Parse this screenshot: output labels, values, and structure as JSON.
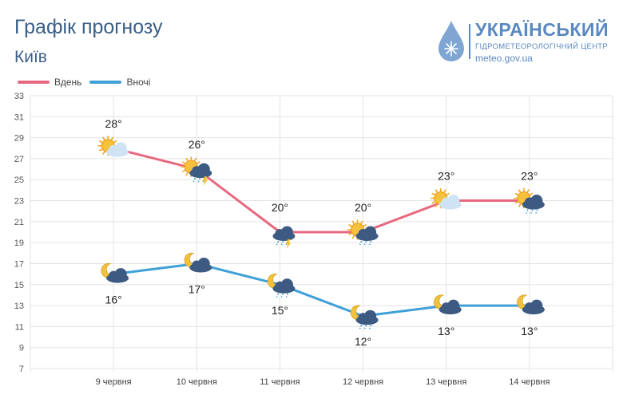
{
  "title": "Графік прогнозу",
  "city": "Київ",
  "logo": {
    "name": "УКРАЇНСЬКИЙ",
    "subtitle": "ГІДРОМЕТЕОРОЛОГІЧНИЙ ЦЕНТР",
    "url": "meteo.gov.ua"
  },
  "colors": {
    "day": "#e8687f",
    "night": "#3fa0d8",
    "grid": "#e3e3e3"
  },
  "chart_data": {
    "type": "line",
    "categories": [
      "9 червня",
      "10 червня",
      "11 червня",
      "12 червня",
      "13 червня",
      "14 червня"
    ],
    "series": [
      {
        "name": "Вдень",
        "values": [
          28,
          26,
          20,
          20,
          23,
          23
        ],
        "labels": [
          "28°",
          "26°",
          "20°",
          "20°",
          "23°",
          "23°"
        ],
        "icons": [
          "sun-cloud",
          "sun-cloud-rain-thunder",
          "cloud-rain-thunder",
          "sun-cloud-rain",
          "sun-cloud",
          "sun-cloud-rain"
        ]
      },
      {
        "name": "Вночі",
        "values": [
          16,
          17,
          15,
          12,
          13,
          13
        ],
        "labels": [
          "16°",
          "17°",
          "15°",
          "12°",
          "13°",
          "13°"
        ],
        "icons": [
          "moon-cloud",
          "moon-cloud",
          "moon-cloud-rain",
          "moon-cloud-rain",
          "moon-cloud",
          "moon-cloud"
        ]
      }
    ],
    "ylim": [
      7,
      33
    ],
    "yticks": [
      "7",
      "9",
      "11",
      "13",
      "15",
      "17",
      "19",
      "21",
      "23",
      "25",
      "27",
      "29",
      "31",
      "33"
    ],
    "grid": true,
    "legend": "top-left"
  }
}
